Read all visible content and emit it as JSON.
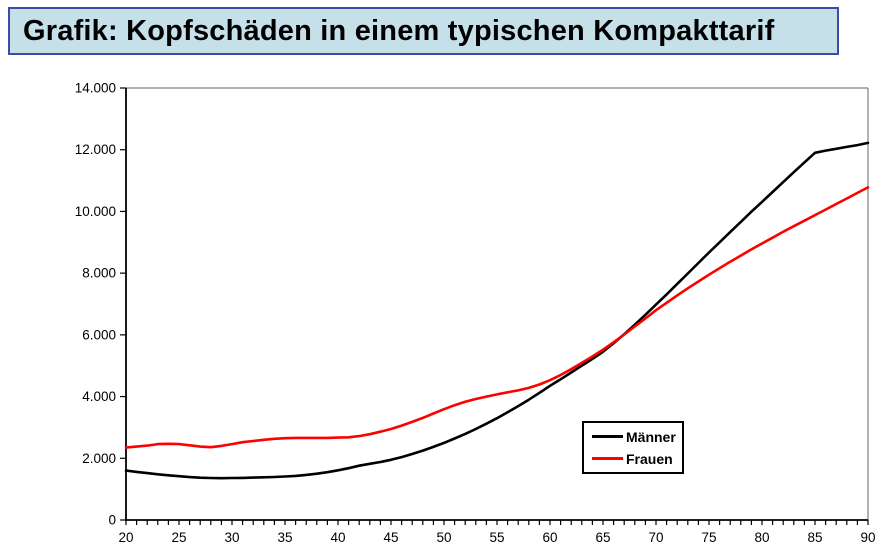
{
  "header": {
    "title": "Grafik: Kopfschäden in einem typischen Kompakttarif",
    "background": "#c5e0e8",
    "border_color": "#3c4ba8"
  },
  "chart_data": {
    "type": "line",
    "title": "Grafik: Kopfschäden in einem typischen Kompakttarif",
    "xlabel": "",
    "ylabel": "",
    "xlim": [
      20,
      90
    ],
    "ylim": [
      0,
      14000
    ],
    "grid": false,
    "legend_position": "inside-right",
    "axis_color": "#000000",
    "border_color": "#808080",
    "x_minor_tick_step": 1,
    "x_tick_labels": [
      "20",
      "25",
      "30",
      "35",
      "40",
      "45",
      "50",
      "55",
      "60",
      "65",
      "70",
      "75",
      "80",
      "85",
      "90"
    ],
    "y_ticks": [
      {
        "value": 0,
        "label": "0"
      },
      {
        "value": 2000,
        "label": "2.000"
      },
      {
        "value": 4000,
        "label": "4.000"
      },
      {
        "value": 6000,
        "label": "6.000"
      },
      {
        "value": 8000,
        "label": "8.000"
      },
      {
        "value": 10000,
        "label": "10.000"
      },
      {
        "value": 12000,
        "label": "12.000"
      },
      {
        "value": 14000,
        "label": "14.000"
      }
    ],
    "x": [
      20,
      21,
      22,
      23,
      24,
      25,
      26,
      27,
      28,
      29,
      30,
      31,
      32,
      33,
      34,
      35,
      36,
      37,
      38,
      39,
      40,
      41,
      42,
      43,
      44,
      45,
      46,
      47,
      48,
      49,
      50,
      51,
      52,
      53,
      54,
      55,
      56,
      57,
      58,
      59,
      60,
      61,
      62,
      63,
      64,
      65,
      66,
      67,
      68,
      69,
      70,
      71,
      72,
      73,
      74,
      75,
      76,
      77,
      78,
      79,
      80,
      81,
      82,
      83,
      84,
      85,
      86,
      87,
      88,
      89,
      90
    ],
    "series": [
      {
        "name": "Männer",
        "color": "#000000",
        "values": [
          1600,
          1560,
          1520,
          1480,
          1450,
          1420,
          1390,
          1370,
          1360,
          1355,
          1360,
          1365,
          1375,
          1385,
          1395,
          1410,
          1430,
          1460,
          1500,
          1550,
          1610,
          1680,
          1760,
          1820,
          1880,
          1950,
          2040,
          2140,
          2250,
          2370,
          2500,
          2640,
          2790,
          2950,
          3120,
          3300,
          3490,
          3690,
          3900,
          4120,
          4350,
          4560,
          4780,
          5000,
          5220,
          5450,
          5730,
          6020,
          6330,
          6650,
          6980,
          7310,
          7650,
          7990,
          8330,
          8670,
          9000,
          9330,
          9660,
          9990,
          10310,
          10630,
          10950,
          11270,
          11590,
          11900,
          11970,
          12030,
          12090,
          12150,
          12220
        ]
      },
      {
        "name": "Frauen",
        "color": "#ff0000",
        "values": [
          2350,
          2380,
          2410,
          2460,
          2470,
          2460,
          2420,
          2380,
          2360,
          2400,
          2460,
          2520,
          2560,
          2600,
          2630,
          2650,
          2660,
          2660,
          2660,
          2660,
          2670,
          2680,
          2720,
          2780,
          2860,
          2950,
          3060,
          3180,
          3310,
          3450,
          3590,
          3720,
          3830,
          3920,
          4000,
          4070,
          4140,
          4200,
          4280,
          4390,
          4530,
          4700,
          4890,
          5090,
          5300,
          5520,
          5760,
          6010,
          6270,
          6530,
          6800,
          7040,
          7280,
          7510,
          7730,
          7950,
          8160,
          8370,
          8570,
          8770,
          8960,
          9150,
          9340,
          9520,
          9700,
          9880,
          10060,
          10240,
          10420,
          10600,
          10780
        ]
      }
    ]
  }
}
